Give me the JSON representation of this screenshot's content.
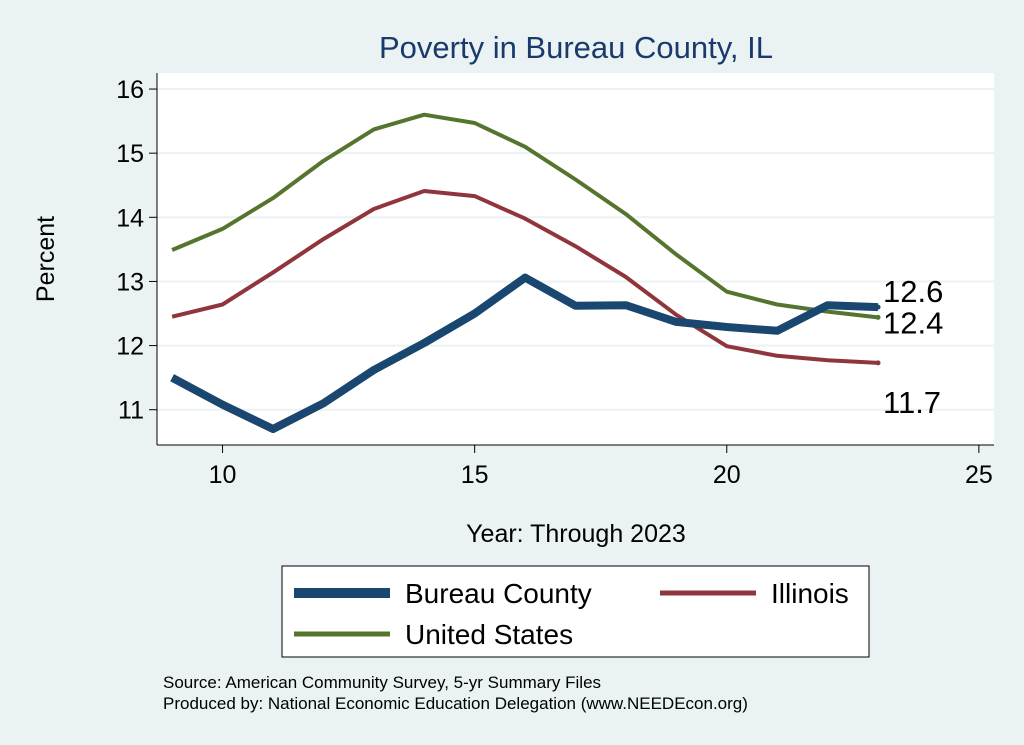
{
  "chart_data": {
    "type": "line",
    "title": "Poverty in Bureau County, IL",
    "xlabel": "Year: Through 2023",
    "ylabel": "Percent",
    "xlim": [
      8.7,
      25.3
    ],
    "ylim": [
      10.45,
      16.25
    ],
    "xticks": [
      10,
      15,
      20,
      25
    ],
    "yticks": [
      11,
      12,
      13,
      14,
      15,
      16
    ],
    "grid": true,
    "legend_position": "bottom",
    "series": [
      {
        "name": "Bureau County",
        "color": "#1a476f",
        "width": 8,
        "end_label": "12.6",
        "x": [
          9,
          10,
          11,
          12,
          13,
          14,
          15,
          16,
          17,
          18,
          19,
          20,
          21,
          22,
          23
        ],
        "y": [
          11.5,
          11.08,
          10.7,
          11.1,
          11.62,
          12.04,
          12.5,
          13.06,
          12.62,
          12.63,
          12.37,
          12.29,
          12.23,
          12.63,
          12.6
        ]
      },
      {
        "name": "Illinois",
        "color": "#90353b",
        "width": 4,
        "end_label": "11.7",
        "x": [
          9,
          10,
          11,
          12,
          13,
          14,
          15,
          16,
          17,
          18,
          19,
          20,
          21,
          22,
          23
        ],
        "y": [
          12.45,
          12.64,
          13.14,
          13.66,
          14.13,
          14.41,
          14.33,
          13.98,
          13.55,
          13.07,
          12.48,
          11.99,
          11.84,
          11.77,
          11.73
        ]
      },
      {
        "name": "United States",
        "color": "#55752f",
        "width": 4,
        "end_label": "12.4",
        "x": [
          9,
          10,
          11,
          12,
          13,
          14,
          15,
          16,
          17,
          18,
          19,
          20,
          21,
          22,
          23
        ],
        "y": [
          13.49,
          13.82,
          14.3,
          14.88,
          15.37,
          15.6,
          15.47,
          15.1,
          14.59,
          14.05,
          13.42,
          12.84,
          12.64,
          12.53,
          12.44
        ]
      }
    ],
    "notes": [
      "Source: American Community Survey, 5-yr Summary Files",
      "Produced by: National Economic Education Delegation (www.NEEDEcon.org)"
    ]
  }
}
